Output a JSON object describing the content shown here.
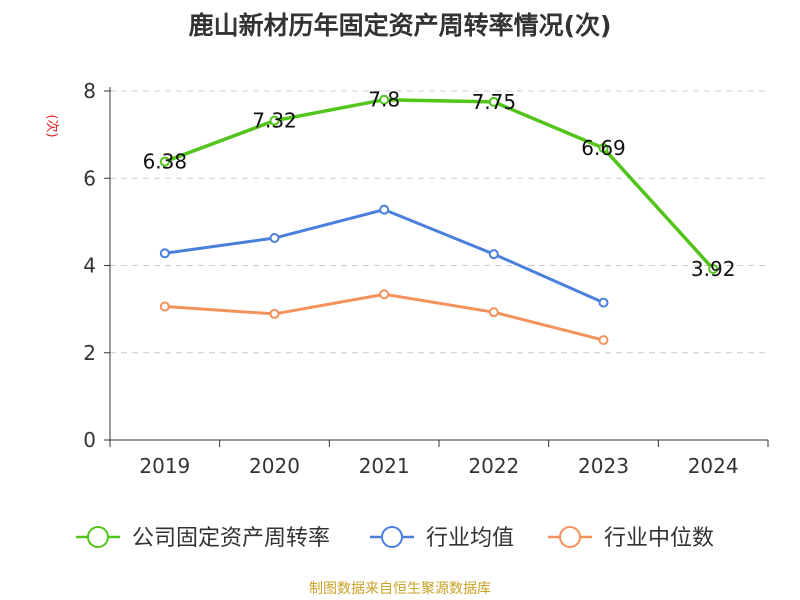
{
  "chart_data": {
    "type": "line",
    "title": "鹿山新材历年固定资产周转率情况(次)",
    "ylabel": "(次)",
    "xlabel": "",
    "categories": [
      "2019",
      "2020",
      "2021",
      "2022",
      "2023",
      "2024"
    ],
    "ylim": [
      0,
      8
    ],
    "yticks": [
      0,
      2,
      4,
      6,
      8
    ],
    "grid": true,
    "legend_position": "bottom",
    "series": [
      {
        "name": "公司固定资产周转率",
        "color": "#52c41a",
        "values": [
          6.38,
          7.32,
          7.8,
          7.75,
          6.69,
          3.92
        ],
        "labels": [
          "6.38",
          "7.32",
          "7.8",
          "7.75",
          "6.69",
          "3.92"
        ]
      },
      {
        "name": "行业均值",
        "color": "#4a7fdc",
        "values": [
          4.28,
          4.63,
          5.28,
          4.26,
          3.15,
          null
        ]
      },
      {
        "name": "行业中位数",
        "color": "#f5915a",
        "values": [
          3.06,
          2.89,
          3.34,
          2.93,
          2.29,
          null
        ]
      }
    ]
  },
  "source_text": "制图数据来自恒生聚源数据库"
}
